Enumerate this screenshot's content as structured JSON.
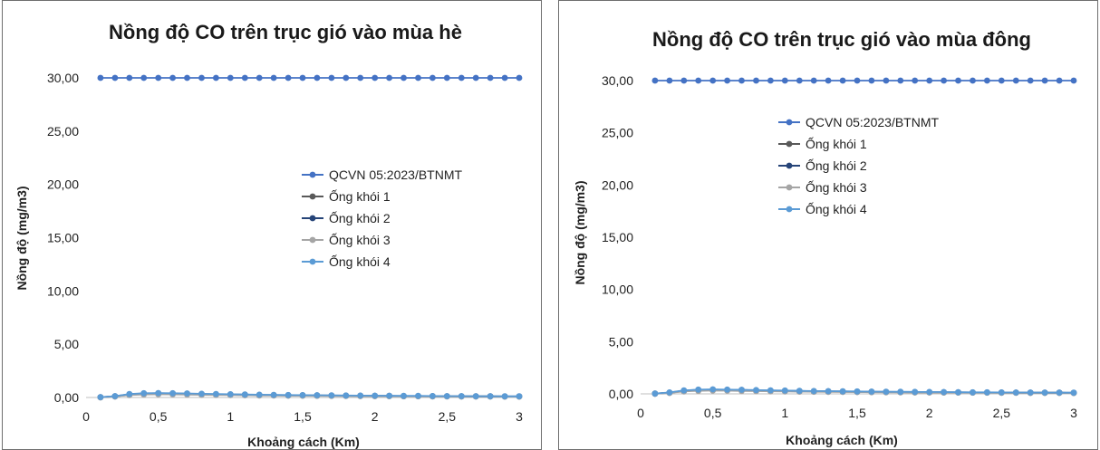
{
  "chart_data": [
    {
      "type": "line",
      "title": "Nồng độ CO trên trục gió vào mùa hè",
      "xlabel": "Khoảng cách (Km)",
      "ylabel": "Nồng độ (mg/m3)",
      "xlim": [
        0,
        3
      ],
      "ylim": [
        0,
        30
      ],
      "xticks": [
        0,
        0.5,
        1,
        1.5,
        2,
        2.5,
        3
      ],
      "xtick_labels": [
        "0",
        "0,5",
        "1",
        "1,5",
        "2",
        "2,5",
        "3"
      ],
      "yticks": [
        0,
        5,
        10,
        15,
        20,
        25,
        30
      ],
      "ytick_labels": [
        "0,00",
        "5,00",
        "10,00",
        "15,00",
        "20,00",
        "25,00",
        "30,00"
      ],
      "grid": false,
      "legend_position": "right",
      "x": [
        0.1,
        0.2,
        0.3,
        0.4,
        0.5,
        0.6,
        0.7,
        0.8,
        0.9,
        1.0,
        1.1,
        1.2,
        1.3,
        1.4,
        1.5,
        1.6,
        1.7,
        1.8,
        1.9,
        2.0,
        2.1,
        2.2,
        2.3,
        2.4,
        2.5,
        2.6,
        2.7,
        2.8,
        2.9,
        3.0
      ],
      "series": [
        {
          "name": "QCVN 05:2023/BTNMT",
          "color": "#4472c4",
          "values": [
            30,
            30,
            30,
            30,
            30,
            30,
            30,
            30,
            30,
            30,
            30,
            30,
            30,
            30,
            30,
            30,
            30,
            30,
            30,
            30,
            30,
            30,
            30,
            30,
            30,
            30,
            30,
            30,
            30,
            30
          ]
        },
        {
          "name": "Ống khói 1",
          "color": "#595959",
          "values": [
            0.02,
            0.1,
            0.25,
            0.32,
            0.34,
            0.33,
            0.31,
            0.29,
            0.27,
            0.25,
            0.23,
            0.21,
            0.2,
            0.19,
            0.18,
            0.17,
            0.16,
            0.15,
            0.14,
            0.14,
            0.13,
            0.12,
            0.12,
            0.11,
            0.11,
            0.1,
            0.1,
            0.1,
            0.09,
            0.09
          ]
        },
        {
          "name": "Ống khói 2",
          "color": "#264478",
          "values": [
            0.03,
            0.12,
            0.3,
            0.38,
            0.4,
            0.38,
            0.36,
            0.33,
            0.31,
            0.29,
            0.27,
            0.25,
            0.23,
            0.22,
            0.21,
            0.2,
            0.19,
            0.18,
            0.17,
            0.16,
            0.15,
            0.14,
            0.14,
            0.13,
            0.12,
            0.12,
            0.11,
            0.11,
            0.1,
            0.1
          ]
        },
        {
          "name": "Ống khói 3",
          "color": "#a5a5a5",
          "values": [
            0.02,
            0.09,
            0.22,
            0.28,
            0.3,
            0.29,
            0.27,
            0.25,
            0.24,
            0.22,
            0.21,
            0.19,
            0.18,
            0.17,
            0.16,
            0.15,
            0.14,
            0.14,
            0.13,
            0.12,
            0.12,
            0.11,
            0.11,
            0.1,
            0.1,
            0.09,
            0.09,
            0.09,
            0.08,
            0.08
          ]
        },
        {
          "name": "Ống khói 4",
          "color": "#5b9bd5",
          "values": [
            0.03,
            0.13,
            0.32,
            0.4,
            0.42,
            0.4,
            0.38,
            0.35,
            0.33,
            0.31,
            0.28,
            0.26,
            0.25,
            0.23,
            0.22,
            0.21,
            0.2,
            0.19,
            0.18,
            0.17,
            0.16,
            0.15,
            0.15,
            0.14,
            0.13,
            0.13,
            0.12,
            0.12,
            0.11,
            0.11
          ]
        }
      ]
    },
    {
      "type": "line",
      "title": "Nồng độ CO trên trục gió vào mùa đông",
      "xlabel": "Khoảng cách (Km)",
      "ylabel": "Nồng độ (mg/m3)",
      "xlim": [
        0,
        3
      ],
      "ylim": [
        0,
        30
      ],
      "xticks": [
        0,
        0.5,
        1,
        1.5,
        2,
        2.5,
        3
      ],
      "xtick_labels": [
        "0",
        "0,5",
        "1",
        "1,5",
        "2",
        "2,5",
        "3"
      ],
      "yticks": [
        0,
        5,
        10,
        15,
        20,
        25,
        30
      ],
      "ytick_labels": [
        "0,00",
        "5,00",
        "10,00",
        "15,00",
        "20,00",
        "25,00",
        "30,00"
      ],
      "grid": false,
      "legend_position": "top-right",
      "x": [
        0.1,
        0.2,
        0.3,
        0.4,
        0.5,
        0.6,
        0.7,
        0.8,
        0.9,
        1.0,
        1.1,
        1.2,
        1.3,
        1.4,
        1.5,
        1.6,
        1.7,
        1.8,
        1.9,
        2.0,
        2.1,
        2.2,
        2.3,
        2.4,
        2.5,
        2.6,
        2.7,
        2.8,
        2.9,
        3.0
      ],
      "series": [
        {
          "name": "QCVN 05:2023/BTNMT",
          "color": "#4472c4",
          "values": [
            30,
            30,
            30,
            30,
            30,
            30,
            30,
            30,
            30,
            30,
            30,
            30,
            30,
            30,
            30,
            30,
            30,
            30,
            30,
            30,
            30,
            30,
            30,
            30,
            30,
            30,
            30,
            30,
            30,
            30
          ]
        },
        {
          "name": "Ống khói 1",
          "color": "#595959",
          "values": [
            0.02,
            0.1,
            0.26,
            0.33,
            0.35,
            0.34,
            0.32,
            0.3,
            0.28,
            0.26,
            0.24,
            0.22,
            0.21,
            0.2,
            0.19,
            0.18,
            0.17,
            0.16,
            0.15,
            0.14,
            0.13,
            0.13,
            0.12,
            0.12,
            0.11,
            0.11,
            0.1,
            0.1,
            0.1,
            0.09
          ]
        },
        {
          "name": "Ống khói 2",
          "color": "#264478",
          "values": [
            0.03,
            0.12,
            0.31,
            0.39,
            0.41,
            0.39,
            0.37,
            0.34,
            0.32,
            0.3,
            0.28,
            0.26,
            0.24,
            0.23,
            0.22,
            0.2,
            0.19,
            0.18,
            0.17,
            0.16,
            0.16,
            0.15,
            0.14,
            0.14,
            0.13,
            0.12,
            0.12,
            0.11,
            0.11,
            0.1
          ]
        },
        {
          "name": "Ống khói 3",
          "color": "#a5a5a5",
          "values": [
            0.02,
            0.09,
            0.23,
            0.29,
            0.31,
            0.3,
            0.28,
            0.26,
            0.24,
            0.23,
            0.21,
            0.2,
            0.19,
            0.18,
            0.17,
            0.16,
            0.15,
            0.14,
            0.13,
            0.13,
            0.12,
            0.12,
            0.11,
            0.11,
            0.1,
            0.1,
            0.09,
            0.09,
            0.09,
            0.08
          ]
        },
        {
          "name": "Ống khói 4",
          "color": "#5b9bd5",
          "values": [
            0.03,
            0.14,
            0.33,
            0.41,
            0.43,
            0.41,
            0.39,
            0.36,
            0.34,
            0.32,
            0.29,
            0.27,
            0.26,
            0.24,
            0.23,
            0.22,
            0.21,
            0.2,
            0.19,
            0.18,
            0.17,
            0.16,
            0.15,
            0.15,
            0.14,
            0.13,
            0.13,
            0.12,
            0.12,
            0.11
          ]
        }
      ]
    }
  ]
}
